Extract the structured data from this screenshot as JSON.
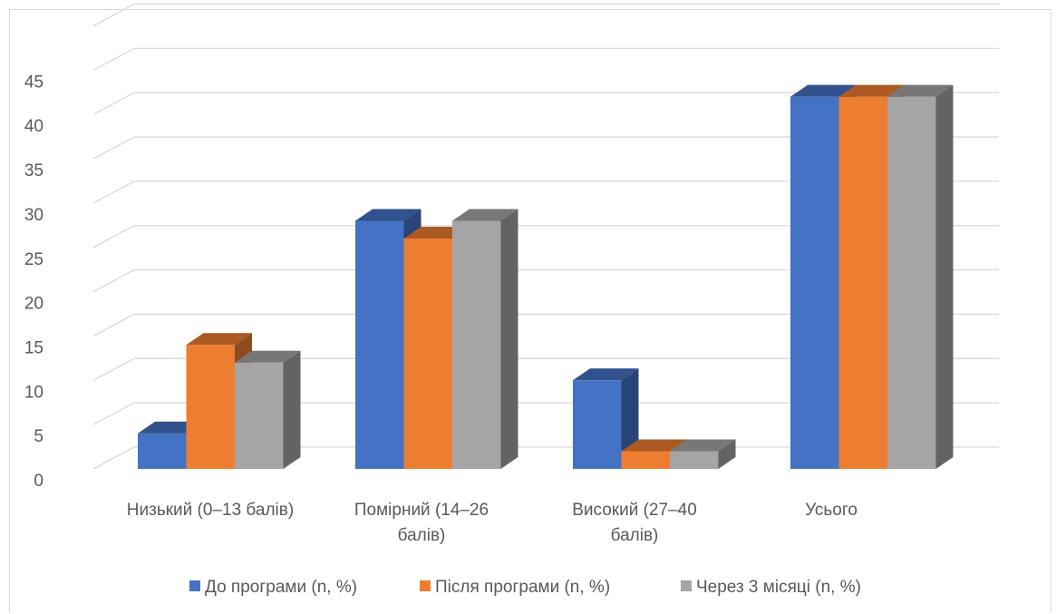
{
  "chart_data": {
    "type": "bar",
    "categories": [
      [
        "Низький (0–13 балів)"
      ],
      [
        "Помірний (14–26",
        "балів)"
      ],
      [
        "Високий (27–40",
        "балів)"
      ],
      [
        "Усього"
      ]
    ],
    "series": [
      {
        "name": "До програми (n, %)",
        "color": "#4472C4",
        "values": [
          4,
          28,
          10,
          42
        ]
      },
      {
        "name": "Після програми (n, %)",
        "color": "#ED7D31",
        "values": [
          14,
          26,
          2,
          42
        ]
      },
      {
        "name": "Через 3 місяці (n, %)",
        "color": "#A5A5A5",
        "values": [
          12,
          28,
          2,
          42
        ]
      }
    ],
    "yticks": [
      "0",
      "5",
      "10",
      "15",
      "20",
      "25",
      "30",
      "35",
      "40",
      "45"
    ],
    "ylim": [
      0,
      50
    ],
    "grid": true,
    "three_d": true,
    "legend": "bottom"
  }
}
